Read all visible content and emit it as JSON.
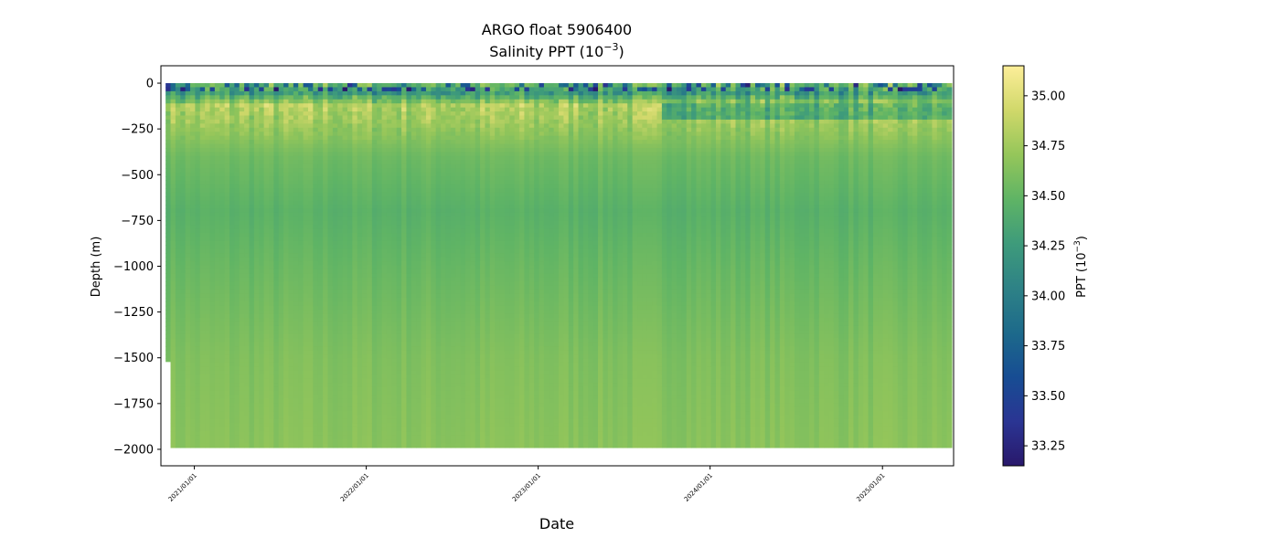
{
  "chart_data": {
    "type": "heatmap",
    "title": "ARGO float 5906400",
    "subtitle_prefix": "Salinity PPT (10",
    "subtitle_exp": "−3",
    "subtitle_suffix": ")",
    "xlabel": "Date",
    "ylabel": "Depth (m)",
    "x_ticks": [
      "2021/01/01",
      "2022/01/01",
      "2023/01/01",
      "2024/01/01",
      "2025/01/01"
    ],
    "x_range": [
      "2020-10-22",
      "2025-06-01"
    ],
    "y_ticks": [
      0,
      -250,
      -500,
      -750,
      -1000,
      -1250,
      -1500,
      -1750,
      -2000
    ],
    "y_range": [
      -2090,
      95
    ],
    "data_x_range": [
      "2020-11-01",
      "2025-05-28"
    ],
    "data_depth_range": [
      -1990,
      0
    ],
    "early_profile_max_depth": -1520,
    "full_depth_start": "2020-11-10",
    "grid": false,
    "colorbar": {
      "label_prefix": "PPT (10",
      "label_exp": "−3",
      "label_suffix": ")",
      "range": [
        33.15,
        35.15
      ],
      "ticks": [
        "33.25",
        "33.50",
        "33.75",
        "34.00",
        "34.25",
        "34.50",
        "34.75",
        "35.00"
      ],
      "colormap": "haline",
      "stops": [
        "#29186b",
        "#2a3593",
        "#174d93",
        "#1d6a8b",
        "#2e8286",
        "#3e9b7b",
        "#5fb465",
        "#95c65a",
        "#d0d86a",
        "#fdee99"
      ]
    },
    "profile_salinity": [
      {
        "depth": 0,
        "salinity": 34.6
      },
      {
        "depth": -50,
        "salinity": 34.2
      },
      {
        "depth": -120,
        "salinity": 34.8
      },
      {
        "depth": -200,
        "salinity": 34.75
      },
      {
        "depth": -400,
        "salinity": 34.55
      },
      {
        "depth": -700,
        "salinity": 34.45
      },
      {
        "depth": -1000,
        "salinity": 34.52
      },
      {
        "depth": -1500,
        "salinity": 34.62
      },
      {
        "depth": -2000,
        "salinity": 34.66
      }
    ]
  }
}
